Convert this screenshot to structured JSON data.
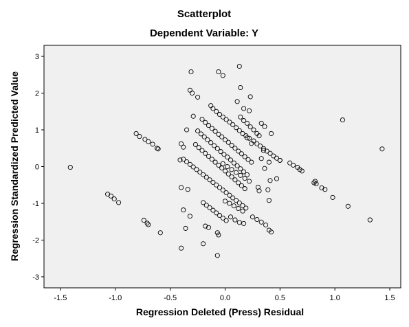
{
  "chart_data": {
    "type": "scatter",
    "title": "Scatterplot",
    "subtitle": "Dependent Variable: Y",
    "xlabel": "Regression Deleted (Press) Residual",
    "ylabel": "Regression Standardized Predicted Value",
    "xlim": [
      -1.65,
      1.6
    ],
    "ylim": [
      -3.3,
      3.3
    ],
    "xticks": [
      "-1.5",
      "-1.0",
      "-0.5",
      "0.0",
      "0.5",
      "1.0",
      "1.5"
    ],
    "yticks": [
      "-3",
      "-2",
      "-1",
      "0",
      "1",
      "2",
      "3"
    ],
    "grid": false,
    "colors": {
      "plot_background": "#f0f0f0",
      "marker_edge": "#000000",
      "frame": "#000000"
    },
    "marker": "hollow-circle",
    "series": [
      {
        "points": [
          [
            -1.41,
            -0.02
          ],
          [
            1.43,
            0.48
          ],
          [
            1.07,
            1.27
          ],
          [
            1.32,
            -1.45
          ],
          [
            1.12,
            -1.08
          ],
          [
            0.98,
            -0.84
          ],
          [
            0.91,
            -0.62
          ],
          [
            0.83,
            -0.47
          ],
          [
            0.88,
            -0.58
          ],
          [
            0.82,
            -0.4
          ],
          [
            0.81,
            -0.44
          ],
          [
            -1.07,
            -0.75
          ],
          [
            -1.04,
            -0.8
          ],
          [
            -1.01,
            -0.88
          ],
          [
            -0.97,
            -0.98
          ],
          [
            -0.81,
            0.9
          ],
          [
            -0.78,
            0.82
          ],
          [
            -0.73,
            0.74
          ],
          [
            -0.7,
            0.68
          ],
          [
            -0.66,
            0.61
          ],
          [
            -0.62,
            0.5
          ],
          [
            -0.61,
            0.48
          ],
          [
            -0.74,
            -1.46
          ],
          [
            -0.71,
            -1.54
          ],
          [
            -0.7,
            -1.58
          ],
          [
            -0.59,
            -1.8
          ],
          [
            -0.4,
            -2.22
          ],
          [
            -0.36,
            -1.68
          ],
          [
            -0.32,
            -1.35
          ],
          [
            -0.38,
            -1.18
          ],
          [
            -0.4,
            -0.57
          ],
          [
            -0.34,
            -0.62
          ],
          [
            -0.31,
            2.58
          ],
          [
            -0.32,
            2.08
          ],
          [
            -0.3,
            2.0
          ],
          [
            -0.25,
            1.89
          ],
          [
            -0.06,
            2.58
          ],
          [
            -0.02,
            2.48
          ],
          [
            0.13,
            2.73
          ],
          [
            0.14,
            2.15
          ],
          [
            0.23,
            1.9
          ],
          [
            0.11,
            1.77
          ],
          [
            0.17,
            1.58
          ],
          [
            0.22,
            1.52
          ],
          [
            -0.35,
            1.0
          ],
          [
            -0.29,
            1.37
          ],
          [
            -0.4,
            0.62
          ],
          [
            -0.38,
            0.53
          ],
          [
            -0.41,
            0.18
          ],
          [
            -0.2,
            -2.1
          ],
          [
            -0.07,
            -2.42
          ],
          [
            -0.06,
            -1.86
          ],
          [
            -0.07,
            -1.8
          ],
          [
            -0.18,
            -1.62
          ],
          [
            -0.15,
            -1.66
          ],
          [
            0.2,
            0.78
          ],
          [
            0.24,
            0.63
          ],
          [
            0.35,
            0.44
          ],
          [
            0.33,
            0.22
          ],
          [
            0.4,
            0.12
          ],
          [
            0.36,
            -0.05
          ],
          [
            0.41,
            -0.38
          ],
          [
            0.39,
            -0.63
          ],
          [
            0.4,
            -0.92
          ],
          [
            0.31,
            -0.66
          ],
          [
            0.3,
            -0.56
          ],
          [
            0.47,
            -0.33
          ],
          [
            0.5,
            0.17
          ],
          [
            0.33,
            1.18
          ],
          [
            0.36,
            1.09
          ],
          [
            0.42,
            0.9
          ],
          [
            0.59,
            0.1
          ],
          [
            0.62,
            0.04
          ],
          [
            0.66,
            -0.02
          ],
          [
            0.68,
            -0.08
          ],
          [
            0.7,
            -0.12
          ],
          [
            -0.13,
            1.66
          ],
          [
            -0.11,
            1.58
          ],
          [
            -0.08,
            1.5
          ],
          [
            -0.05,
            1.42
          ],
          [
            -0.02,
            1.35
          ],
          [
            0.01,
            1.28
          ],
          [
            0.04,
            1.21
          ],
          [
            0.07,
            1.14
          ],
          [
            0.1,
            1.06
          ],
          [
            0.13,
            0.98
          ],
          [
            0.16,
            0.9
          ],
          [
            0.19,
            0.84
          ],
          [
            0.22,
            0.77
          ],
          [
            0.26,
            0.7
          ],
          [
            0.29,
            0.62
          ],
          [
            0.32,
            0.56
          ],
          [
            0.35,
            0.49
          ],
          [
            0.38,
            0.42
          ],
          [
            0.41,
            0.36
          ],
          [
            0.44,
            0.29
          ],
          [
            0.47,
            0.23
          ],
          [
            0.5,
            0.17
          ],
          [
            -0.21,
            1.29
          ],
          [
            -0.18,
            1.2
          ],
          [
            -0.15,
            1.12
          ],
          [
            -0.12,
            1.04
          ],
          [
            -0.09,
            0.96
          ],
          [
            -0.06,
            0.88
          ],
          [
            -0.03,
            0.81
          ],
          [
            0.0,
            0.73
          ],
          [
            0.03,
            0.66
          ],
          [
            0.06,
            0.58
          ],
          [
            0.09,
            0.5
          ],
          [
            0.12,
            0.42
          ],
          [
            0.15,
            0.35
          ],
          [
            0.18,
            0.27
          ],
          [
            0.21,
            0.19
          ],
          [
            0.24,
            0.12
          ],
          [
            -0.25,
            0.97
          ],
          [
            -0.22,
            0.89
          ],
          [
            -0.19,
            0.81
          ],
          [
            -0.16,
            0.73
          ],
          [
            -0.13,
            0.65
          ],
          [
            -0.1,
            0.57
          ],
          [
            -0.07,
            0.49
          ],
          [
            -0.04,
            0.41
          ],
          [
            -0.01,
            0.33
          ],
          [
            0.02,
            0.26
          ],
          [
            0.05,
            0.18
          ],
          [
            0.08,
            0.1
          ],
          [
            0.11,
            0.02
          ],
          [
            0.14,
            -0.06
          ],
          [
            0.17,
            -0.14
          ],
          [
            0.2,
            -0.22
          ],
          [
            -0.27,
            0.6
          ],
          [
            -0.24,
            0.52
          ],
          [
            -0.21,
            0.44
          ],
          [
            -0.18,
            0.36
          ],
          [
            -0.15,
            0.28
          ],
          [
            -0.12,
            0.2
          ],
          [
            -0.09,
            0.12
          ],
          [
            -0.06,
            0.04
          ],
          [
            -0.03,
            -0.04
          ],
          [
            0.0,
            -0.12
          ],
          [
            0.03,
            -0.2
          ],
          [
            0.06,
            -0.28
          ],
          [
            0.09,
            -0.36
          ],
          [
            0.12,
            -0.44
          ],
          [
            0.15,
            -0.52
          ],
          [
            0.18,
            -0.6
          ],
          [
            -0.38,
            0.2
          ],
          [
            -0.35,
            0.13
          ],
          [
            -0.32,
            0.06
          ],
          [
            -0.29,
            -0.01
          ],
          [
            -0.26,
            -0.08
          ],
          [
            -0.23,
            -0.15
          ],
          [
            -0.2,
            -0.22
          ],
          [
            -0.17,
            -0.29
          ],
          [
            -0.14,
            -0.36
          ],
          [
            -0.11,
            -0.43
          ],
          [
            -0.08,
            -0.5
          ],
          [
            -0.05,
            -0.57
          ],
          [
            -0.02,
            -0.64
          ],
          [
            0.01,
            -0.71
          ],
          [
            0.04,
            -0.78
          ],
          [
            0.07,
            -0.85
          ],
          [
            0.1,
            -0.92
          ],
          [
            0.13,
            -0.99
          ],
          [
            0.16,
            -1.06
          ],
          [
            0.19,
            -1.13
          ],
          [
            -0.2,
            -0.98
          ],
          [
            -0.17,
            -1.05
          ],
          [
            -0.14,
            -1.12
          ],
          [
            -0.11,
            -1.19
          ],
          [
            -0.08,
            -1.26
          ],
          [
            -0.05,
            -1.33
          ],
          [
            -0.02,
            -1.4
          ],
          [
            0.01,
            -1.47
          ],
          [
            0.05,
            -1.37
          ],
          [
            0.09,
            -1.45
          ],
          [
            0.13,
            -1.52
          ],
          [
            0.17,
            -1.55
          ],
          [
            0.25,
            -1.37
          ],
          [
            0.29,
            -1.44
          ],
          [
            0.33,
            -1.51
          ],
          [
            0.37,
            -1.59
          ],
          [
            0.4,
            -1.73
          ],
          [
            0.42,
            -1.78
          ],
          [
            -0.02,
            0.08
          ],
          [
            0.02,
            0.0
          ],
          [
            0.06,
            -0.08
          ],
          [
            0.1,
            -0.16
          ],
          [
            0.14,
            -0.24
          ],
          [
            0.18,
            -0.32
          ],
          [
            0.22,
            -0.4
          ],
          [
            0.0,
            -0.94
          ],
          [
            0.04,
            -1.0
          ],
          [
            0.08,
            -1.07
          ],
          [
            0.12,
            -1.14
          ],
          [
            0.16,
            -1.21
          ],
          [
            0.14,
            1.35
          ],
          [
            0.17,
            1.25
          ],
          [
            0.2,
            1.18
          ],
          [
            0.23,
            1.08
          ],
          [
            0.26,
            1.0
          ],
          [
            0.29,
            0.9
          ],
          [
            0.31,
            0.84
          ]
        ]
      }
    ]
  }
}
